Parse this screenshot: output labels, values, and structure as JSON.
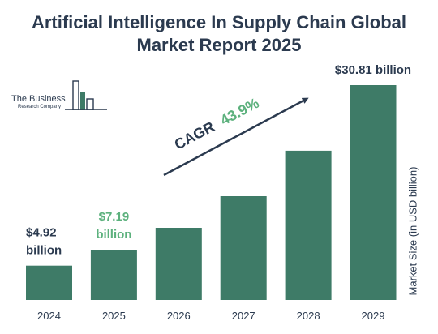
{
  "title_line1": "Artificial Intelligence In Supply Chain Global",
  "title_line2": "Market Report 2025",
  "logo": {
    "line1": "The Business",
    "line2": "Research Company"
  },
  "cagr": {
    "label": "CAGR",
    "value": "43.9%"
  },
  "colors": {
    "bar": "#3e7b67",
    "highlight": "#5cb17d",
    "text": "#2b3a4f"
  },
  "chart_data": {
    "type": "bar",
    "categories": [
      "2024",
      "2025",
      "2026",
      "2027",
      "2028",
      "2029"
    ],
    "values": [
      4.92,
      7.19,
      10.35,
      14.88,
      21.41,
      30.81
    ],
    "ylabel": "Market Size (in USD billion)",
    "data_labels": [
      {
        "index": 0,
        "line1": "$4.92",
        "line2": "billion"
      },
      {
        "index": 1,
        "line1": "$7.19",
        "line2": "billion"
      },
      {
        "index": 5,
        "line1": "$30.81 billion",
        "line2": ""
      }
    ]
  }
}
